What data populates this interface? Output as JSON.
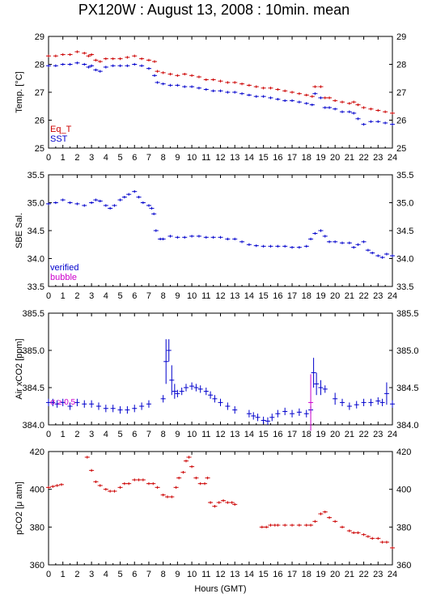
{
  "title": "PX120W : August 13, 2008 : 10min. mean",
  "xlabel": "Hours (GMT)",
  "chart_data": [
    {
      "type": "scatter",
      "panel": "temperature",
      "ylabel": "Temp. [°C]",
      "xlim": [
        0,
        24
      ],
      "ylim": [
        25,
        29
      ],
      "yticks": [
        25,
        26,
        27,
        28,
        29
      ],
      "xticks": [
        0,
        1,
        2,
        3,
        4,
        5,
        6,
        7,
        8,
        9,
        10,
        11,
        12,
        13,
        14,
        15,
        16,
        17,
        18,
        19,
        20,
        21,
        22,
        23,
        24
      ],
      "legend": [
        "Eq_T",
        "SST"
      ],
      "legend_position": "bottom-left",
      "series": [
        {
          "name": "Eq_T",
          "color": "#cc0000",
          "x": [
            0,
            0.5,
            1,
            1.5,
            2,
            2.5,
            2.8,
            3,
            3.3,
            3.6,
            4,
            4.5,
            5,
            5.5,
            6,
            6.5,
            7,
            7.4,
            7.6,
            8,
            8.5,
            9,
            9.5,
            10,
            10.5,
            11,
            11.5,
            12,
            12.5,
            13,
            13.5,
            14,
            14.5,
            15,
            15.5,
            16,
            16.5,
            17,
            17.5,
            18,
            18.4,
            18.6,
            19,
            19.3,
            19.6,
            20,
            20.5,
            21,
            21.3,
            21.6,
            22,
            22.5,
            23,
            23.5,
            24
          ],
          "y": [
            28.3,
            28.3,
            28.35,
            28.35,
            28.45,
            28.4,
            28.3,
            28.35,
            28.15,
            28.1,
            28.2,
            28.2,
            28.2,
            28.25,
            28.3,
            28.2,
            28.15,
            28.1,
            27.75,
            27.7,
            27.65,
            27.6,
            27.65,
            27.6,
            27.55,
            27.45,
            27.45,
            27.4,
            27.35,
            27.35,
            27.3,
            27.25,
            27.2,
            27.15,
            27.15,
            27.1,
            27.05,
            27.0,
            26.95,
            26.9,
            26.85,
            27.2,
            27.2,
            26.8,
            26.8,
            26.7,
            26.65,
            26.6,
            26.65,
            26.55,
            26.45,
            26.4,
            26.35,
            26.3,
            26.25
          ]
        },
        {
          "name": "SST",
          "color": "#0000cc",
          "x": [
            0,
            0.5,
            1,
            1.5,
            2,
            2.5,
            2.8,
            3,
            3.3,
            3.6,
            4,
            4.5,
            5,
            5.5,
            6,
            6.5,
            7,
            7.4,
            7.6,
            8,
            8.5,
            9,
            9.5,
            10,
            10.5,
            11,
            11.5,
            12,
            12.5,
            13,
            13.5,
            14,
            14.5,
            15,
            15.5,
            16,
            16.5,
            17,
            17.5,
            18,
            18.4,
            18.6,
            19,
            19.3,
            19.6,
            20,
            20.5,
            21,
            21.3,
            21.6,
            22,
            22.5,
            23,
            23.5,
            24
          ],
          "y": [
            27.95,
            27.95,
            28.0,
            28.0,
            28.05,
            28.0,
            27.9,
            27.95,
            27.8,
            27.75,
            27.9,
            27.95,
            27.95,
            27.95,
            28.0,
            27.95,
            27.85,
            27.6,
            27.35,
            27.3,
            27.25,
            27.25,
            27.2,
            27.2,
            27.15,
            27.1,
            27.05,
            27.05,
            27.0,
            27.0,
            26.95,
            26.9,
            26.85,
            26.85,
            26.8,
            26.75,
            26.7,
            26.7,
            26.65,
            26.6,
            26.55,
            26.95,
            26.8,
            26.45,
            26.45,
            26.4,
            26.3,
            26.3,
            26.25,
            26.05,
            25.85,
            25.95,
            25.95,
            25.9,
            25.85
          ]
        }
      ]
    },
    {
      "type": "scatter",
      "panel": "salinity",
      "ylabel": "SBE Sal.",
      "xlim": [
        0,
        24
      ],
      "ylim": [
        33.5,
        35.5
      ],
      "yticks": [
        33.5,
        34,
        34.5,
        35,
        35.5
      ],
      "xticks": [
        0,
        1,
        2,
        3,
        4,
        5,
        6,
        7,
        8,
        9,
        10,
        11,
        12,
        13,
        14,
        15,
        16,
        17,
        18,
        19,
        20,
        21,
        22,
        23,
        24
      ],
      "legend": [
        "verified",
        "bubble"
      ],
      "legend_position": "bottom-left",
      "series": [
        {
          "name": "verified",
          "color": "#0000cc",
          "x": [
            0,
            0.5,
            1,
            1.5,
            2,
            2.5,
            3,
            3.3,
            3.6,
            4,
            4.3,
            4.6,
            5,
            5.3,
            5.6,
            6,
            6.3,
            6.6,
            7,
            7.2,
            7.35,
            7.5,
            7.8,
            8,
            8.5,
            9,
            9.5,
            10,
            10.5,
            11,
            11.5,
            12,
            12.5,
            13,
            13.5,
            14,
            14.5,
            15,
            15.5,
            16,
            16.5,
            17,
            17.5,
            18,
            18.3,
            18.6,
            19,
            19.3,
            19.6,
            20,
            20.5,
            21,
            21.3,
            21.6,
            22,
            22.3,
            22.6,
            23,
            23.3,
            23.6,
            24
          ],
          "y": [
            34.98,
            35.0,
            35.05,
            35.0,
            34.98,
            34.95,
            35.0,
            35.05,
            35.03,
            34.95,
            34.9,
            34.95,
            35.05,
            35.1,
            35.15,
            35.2,
            35.1,
            35.0,
            34.95,
            34.9,
            34.8,
            34.5,
            34.35,
            34.35,
            34.4,
            34.38,
            34.38,
            34.4,
            34.4,
            34.38,
            34.38,
            34.38,
            34.35,
            34.35,
            34.3,
            34.25,
            34.23,
            34.22,
            34.22,
            34.22,
            34.22,
            34.2,
            34.2,
            34.22,
            34.35,
            34.45,
            34.5,
            34.4,
            34.3,
            34.3,
            34.28,
            34.28,
            34.2,
            34.25,
            34.3,
            34.15,
            34.1,
            34.05,
            34.02,
            34.08,
            34.05
          ]
        }
      ]
    },
    {
      "type": "scatter",
      "panel": "air_xco2",
      "ylabel": "Air xCO2 [ppm]",
      "xlim": [
        0,
        24
      ],
      "ylim": [
        384,
        385.5
      ],
      "yticks": [
        384,
        384.5,
        385,
        385.5
      ],
      "xticks": [
        0,
        1,
        2,
        3,
        4,
        5,
        6,
        7,
        8,
        9,
        10,
        11,
        12,
        13,
        14,
        15,
        16,
        17,
        18,
        19,
        20,
        21,
        22,
        23,
        24
      ],
      "annotation": "σ ≥ 0.5",
      "series": [
        {
          "name": "",
          "color": "#0000cc",
          "x": [
            0,
            0.3,
            0.6,
            1,
            1.5,
            2,
            2.5,
            3,
            3.5,
            4,
            4.5,
            5,
            5.5,
            6,
            6.5,
            7,
            8,
            8.2,
            8.4,
            8.6,
            8.8,
            9,
            9.3,
            9.6,
            10,
            10.3,
            10.6,
            11,
            11.3,
            11.6,
            12,
            12.5,
            13,
            14,
            14.3,
            14.6,
            15,
            15.3,
            15.6,
            16,
            16.5,
            17,
            17.5,
            18,
            18.3,
            18.5,
            18.7,
            19,
            19.3,
            20,
            20.5,
            21,
            21.5,
            22,
            22.5,
            23,
            23.3,
            23.6,
            24
          ],
          "y": [
            384.3,
            384.3,
            384.28,
            384.3,
            384.25,
            384.3,
            384.28,
            384.28,
            384.25,
            384.22,
            384.22,
            384.2,
            384.2,
            384.22,
            384.25,
            384.28,
            384.35,
            384.85,
            385.0,
            384.6,
            384.45,
            384.42,
            384.45,
            384.5,
            384.52,
            384.5,
            384.48,
            384.45,
            384.4,
            384.35,
            384.3,
            384.25,
            384.2,
            384.15,
            384.12,
            384.1,
            384.06,
            384.05,
            384.1,
            384.15,
            384.18,
            384.15,
            384.17,
            384.15,
            384.2,
            384.7,
            384.55,
            384.5,
            384.48,
            384.35,
            384.3,
            384.25,
            384.27,
            384.3,
            384.3,
            384.32,
            384.3,
            384.42,
            384.28
          ],
          "err": [
            0.05,
            0.05,
            0.05,
            0.05,
            0.05,
            0.05,
            0.05,
            0.05,
            0.05,
            0.05,
            0.05,
            0.05,
            0.05,
            0.05,
            0.05,
            0.05,
            0.05,
            0.3,
            0.15,
            0.2,
            0.1,
            0.05,
            0.05,
            0.05,
            0.05,
            0.05,
            0.05,
            0.05,
            0.05,
            0.05,
            0.05,
            0.05,
            0.05,
            0.05,
            0.05,
            0.05,
            0.05,
            0.05,
            0.05,
            0.05,
            0.05,
            0.05,
            0.05,
            0.05,
            0.05,
            0.2,
            0.15,
            0.1,
            0.05,
            0.08,
            0.05,
            0.05,
            0.05,
            0.05,
            0.05,
            0.05,
            0.05,
            0.15,
            0.05
          ]
        },
        {
          "name": "",
          "color": "#cc00cc",
          "x": [
            18.3
          ],
          "y": [
            384.3
          ],
          "err": [
            0.38
          ]
        }
      ]
    },
    {
      "type": "scatter",
      "panel": "pco2",
      "ylabel": "pCO2 [μ atm]",
      "xlim": [
        0,
        24
      ],
      "ylim": [
        360,
        420
      ],
      "yticks": [
        360,
        380,
        400,
        420
      ],
      "xticks": [
        0,
        1,
        2,
        3,
        4,
        5,
        6,
        7,
        8,
        9,
        10,
        11,
        12,
        13,
        14,
        15,
        16,
        17,
        18,
        19,
        20,
        21,
        22,
        23,
        24
      ],
      "series": [
        {
          "name": "",
          "color": "#cc0000",
          "x": [
            0,
            0.3,
            0.6,
            0.9,
            2.7,
            3,
            3.3,
            3.6,
            4,
            4.3,
            4.6,
            5,
            5.3,
            5.6,
            6,
            6.3,
            6.6,
            7,
            7.3,
            7.6,
            8,
            8.3,
            8.6,
            8.9,
            9.1,
            9.4,
            9.6,
            9.8,
            10,
            10.3,
            10.6,
            10.9,
            11.1,
            11.3,
            11.6,
            11.9,
            12.2,
            12.5,
            12.8,
            13,
            14.9,
            15.2,
            15.5,
            15.8,
            16,
            16.5,
            17,
            17.5,
            18,
            18.3,
            18.6,
            19,
            19.3,
            19.6,
            20,
            20.5,
            21,
            21.3,
            21.6,
            22,
            22.3,
            22.6,
            23,
            23.3,
            23.6,
            24
          ],
          "y": [
            401,
            401.5,
            402,
            402.5,
            417,
            410,
            404,
            402,
            400,
            399,
            399,
            401,
            403,
            403,
            405,
            405,
            405,
            403,
            403,
            401,
            397,
            396,
            396,
            401,
            406,
            409,
            415,
            417,
            412,
            406,
            403,
            403,
            406,
            393,
            391,
            393,
            394,
            393,
            393,
            392,
            380,
            380,
            381,
            381,
            381,
            381,
            381,
            381,
            381,
            381,
            383,
            387,
            388,
            385,
            383,
            380,
            378,
            377,
            377,
            376,
            375,
            374,
            374,
            372,
            372,
            369
          ]
        }
      ]
    }
  ]
}
